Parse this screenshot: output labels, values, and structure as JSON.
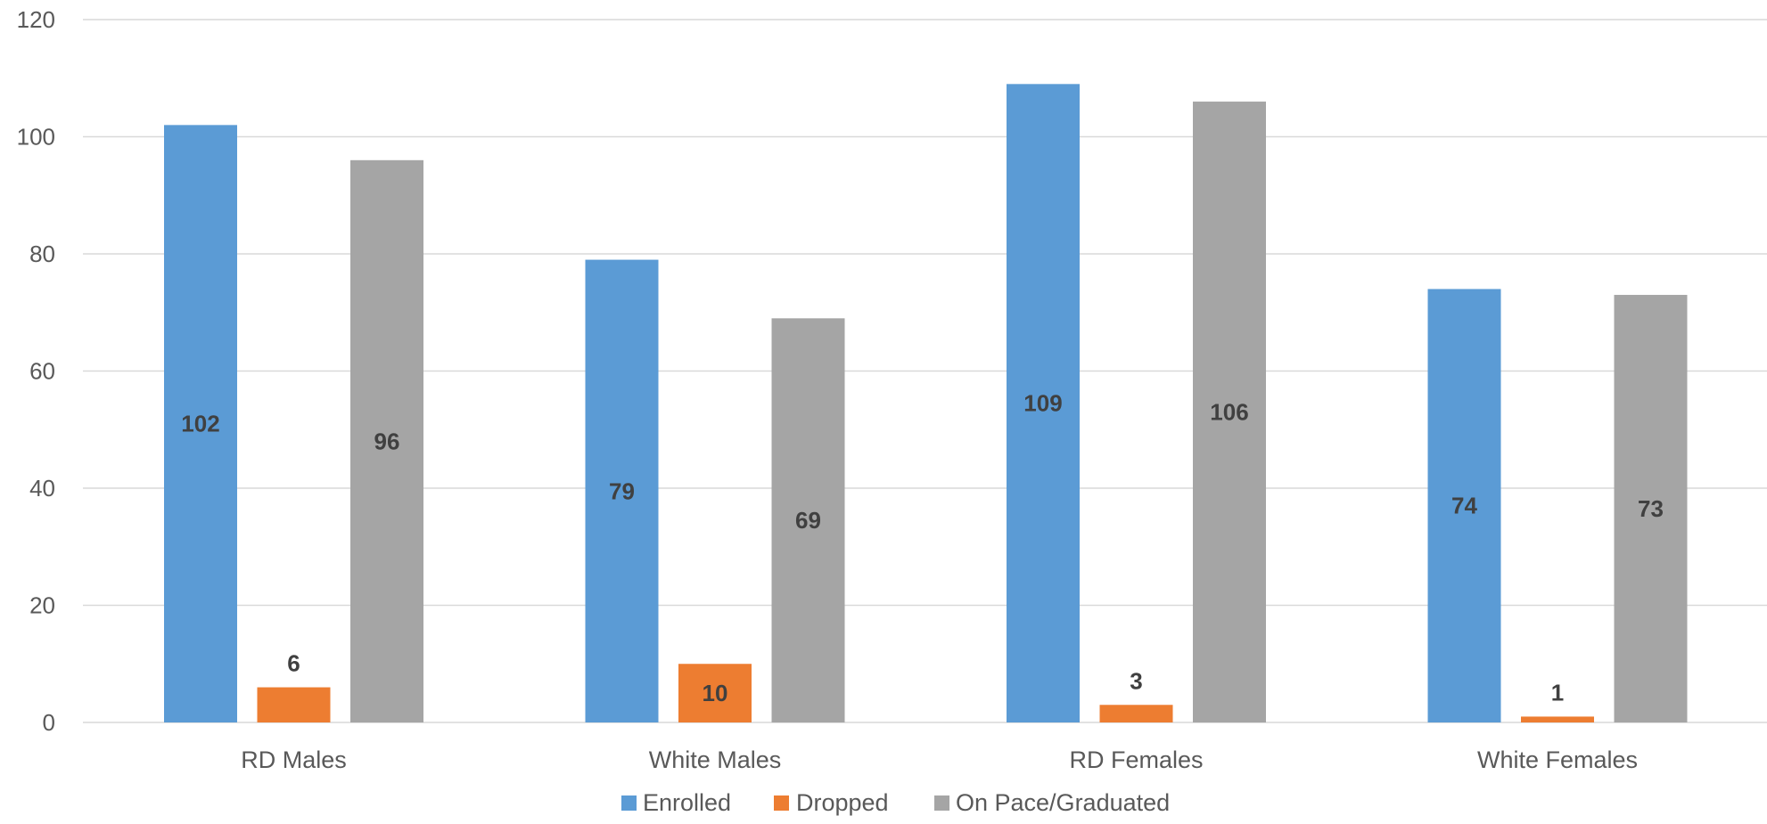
{
  "chart_data": {
    "type": "bar",
    "title": "",
    "xlabel": "",
    "ylabel": "",
    "ylim": [
      0,
      120
    ],
    "yticks": [
      0,
      20,
      40,
      60,
      80,
      100,
      120
    ],
    "grid": true,
    "legend_position": "bottom",
    "categories": [
      "RD Males",
      "White Males",
      "RD Females",
      "White Females"
    ],
    "series": [
      {
        "name": "Enrolled",
        "color": "#5b9bd5",
        "values": [
          102,
          79,
          109,
          74
        ]
      },
      {
        "name": "Dropped",
        "color": "#ed7d31",
        "values": [
          6,
          10,
          3,
          1
        ]
      },
      {
        "name": "On Pace/Graduated",
        "color": "#a5a5a5",
        "values": [
          96,
          69,
          106,
          73
        ]
      }
    ]
  }
}
